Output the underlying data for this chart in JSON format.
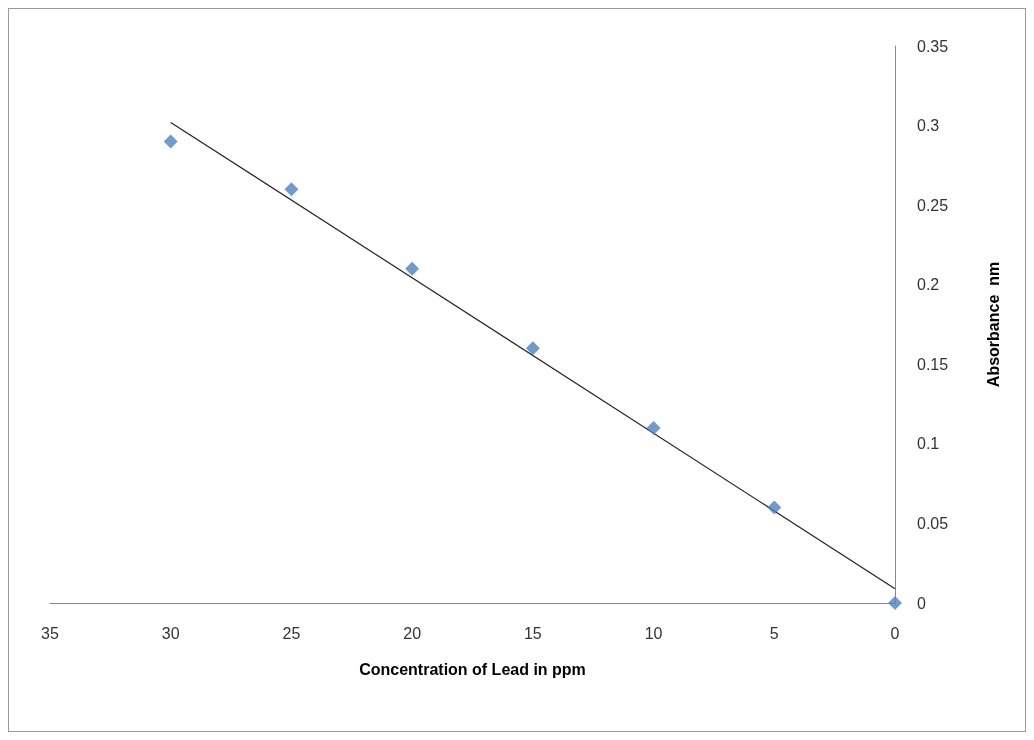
{
  "chart_data": {
    "type": "scatter",
    "xlabel": "Concentration of Lead in ppm",
    "ylabel": "Absorbance  nm",
    "xlim": [
      35,
      0
    ],
    "xticks": [
      35,
      30,
      25,
      20,
      15,
      10,
      5,
      0
    ],
    "ylim": [
      0,
      0.35
    ],
    "yticks": [
      0,
      0.05,
      0.1,
      0.15,
      0.2,
      0.25,
      0.3,
      0.35
    ],
    "grid": false,
    "marker": "diamond",
    "series": [
      {
        "color": "#4f81bd",
        "x": [
          30,
          25,
          20,
          15,
          10,
          5,
          0
        ],
        "values": [
          0.29,
          0.26,
          0.21,
          0.16,
          0.11,
          0.06,
          0
        ]
      },
      {
        "type": "line",
        "color": "#222222",
        "x": [
          30,
          0
        ],
        "values": [
          0.302,
          0.009
        ],
        "marker": "none",
        "line_style": "solid"
      }
    ]
  }
}
